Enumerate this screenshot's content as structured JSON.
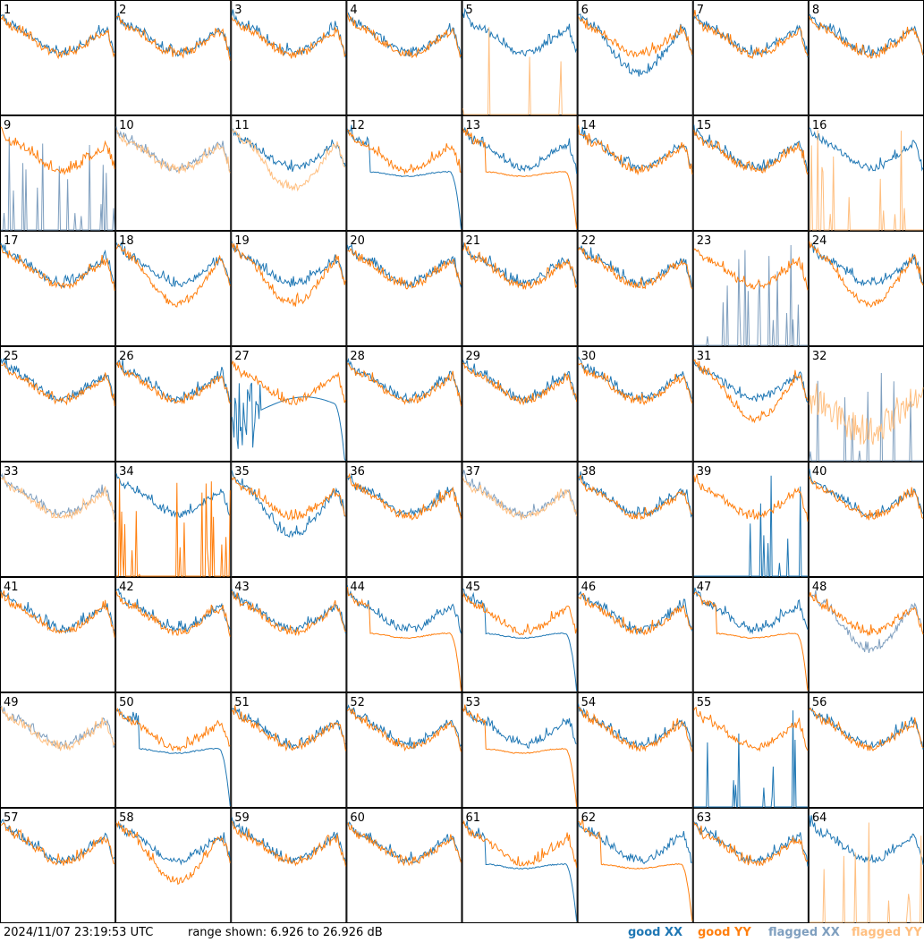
{
  "footer": {
    "timestamp": "2024/11/07 23:19:53 UTC",
    "range_prefix": "range shown:",
    "range_text": "6.926 to 26.926 dB",
    "legend": {
      "good_xx": "good XX",
      "good_yy": "good YY",
      "flagged_xx": "flagged XX",
      "flagged_yy": "flagged YY"
    }
  },
  "colors": {
    "good_xx": "#1f77b4",
    "good_yy": "#ff7f0e",
    "flagged_xx": "#7f9fbf",
    "flagged_yy": "#ffbf80",
    "panel_border": "#000000"
  },
  "chart_data": {
    "type": "line",
    "grid": {
      "rows": 8,
      "cols": 8
    },
    "ylim": [
      6.926,
      26.926
    ],
    "yunit": "dB",
    "series_names": [
      "good XX",
      "good YY",
      "flagged XX",
      "flagged YY"
    ],
    "panels": [
      {
        "id": "1",
        "xx": "normal",
        "yy": "normal"
      },
      {
        "id": "2",
        "xx": "normal",
        "yy": "normal"
      },
      {
        "id": "3",
        "xx": "normal",
        "yy": "normal"
      },
      {
        "id": "4",
        "xx": "normal",
        "yy": "normal"
      },
      {
        "id": "5",
        "xx": "normal",
        "yy": "spiky_flagged"
      },
      {
        "id": "6",
        "xx": "low_dip",
        "yy": "normal"
      },
      {
        "id": "7",
        "xx": "normal",
        "yy": "normal"
      },
      {
        "id": "8",
        "xx": "normal",
        "yy": "normal"
      },
      {
        "id": "9",
        "xx": "spiky_flagged",
        "yy": "normal"
      },
      {
        "id": "10",
        "xx": "normal_flagged",
        "yy": "normal_flagged"
      },
      {
        "id": "11",
        "xx": "normal",
        "yy": "low_flagged"
      },
      {
        "id": "12",
        "xx": "rolloff",
        "yy": "normal"
      },
      {
        "id": "13",
        "xx": "normal",
        "yy": "rolloff"
      },
      {
        "id": "14",
        "xx": "normal",
        "yy": "normal"
      },
      {
        "id": "15",
        "xx": "normal",
        "yy": "normal"
      },
      {
        "id": "16",
        "xx": "normal",
        "yy": "spiky_flagged"
      },
      {
        "id": "17",
        "xx": "normal",
        "yy": "normal"
      },
      {
        "id": "18",
        "xx": "normal",
        "yy": "low_dip"
      },
      {
        "id": "19",
        "xx": "normal",
        "yy": "low_dip"
      },
      {
        "id": "20",
        "xx": "normal",
        "yy": "normal"
      },
      {
        "id": "21",
        "xx": "normal",
        "yy": "normal"
      },
      {
        "id": "22",
        "xx": "normal",
        "yy": "normal"
      },
      {
        "id": "23",
        "xx": "spiky_flagged",
        "yy": "normal"
      },
      {
        "id": "24",
        "xx": "normal",
        "yy": "low_dip"
      },
      {
        "id": "25",
        "xx": "normal",
        "yy": "normal"
      },
      {
        "id": "26",
        "xx": "normal",
        "yy": "normal"
      },
      {
        "id": "27",
        "xx": "noisy_rolloff",
        "yy": "normal"
      },
      {
        "id": "28",
        "xx": "normal",
        "yy": "normal"
      },
      {
        "id": "29",
        "xx": "normal",
        "yy": "normal"
      },
      {
        "id": "30",
        "xx": "normal",
        "yy": "normal"
      },
      {
        "id": "31",
        "xx": "normal",
        "yy": "low_dip"
      },
      {
        "id": "32",
        "xx": "spiky_flagged",
        "yy": "noisy_flagged"
      },
      {
        "id": "33",
        "xx": "normal_flagged",
        "yy": "normal_flagged"
      },
      {
        "id": "34",
        "xx": "normal",
        "yy": "spiky"
      },
      {
        "id": "35",
        "xx": "low_dip",
        "yy": "normal"
      },
      {
        "id": "36",
        "xx": "normal",
        "yy": "normal"
      },
      {
        "id": "37",
        "xx": "normal_flagged",
        "yy": "normal_flagged"
      },
      {
        "id": "38",
        "xx": "normal",
        "yy": "normal"
      },
      {
        "id": "39",
        "xx": "spiky",
        "yy": "normal"
      },
      {
        "id": "40",
        "xx": "normal",
        "yy": "normal"
      },
      {
        "id": "41",
        "xx": "normal",
        "yy": "normal"
      },
      {
        "id": "42",
        "xx": "normal",
        "yy": "normal"
      },
      {
        "id": "43",
        "xx": "normal",
        "yy": "normal"
      },
      {
        "id": "44",
        "xx": "normal",
        "yy": "rolloff"
      },
      {
        "id": "45",
        "xx": "rolloff",
        "yy": "normal"
      },
      {
        "id": "46",
        "xx": "normal",
        "yy": "normal"
      },
      {
        "id": "47",
        "xx": "normal",
        "yy": "rolloff"
      },
      {
        "id": "48",
        "xx": "low_flagged",
        "yy": "normal"
      },
      {
        "id": "49",
        "xx": "normal_flagged",
        "yy": "normal_flagged"
      },
      {
        "id": "50",
        "xx": "rolloff",
        "yy": "normal"
      },
      {
        "id": "51",
        "xx": "normal",
        "yy": "normal"
      },
      {
        "id": "52",
        "xx": "normal",
        "yy": "normal"
      },
      {
        "id": "53",
        "xx": "normal",
        "yy": "rolloff"
      },
      {
        "id": "54",
        "xx": "normal",
        "yy": "normal"
      },
      {
        "id": "55",
        "xx": "spiky",
        "yy": "normal"
      },
      {
        "id": "56",
        "xx": "normal",
        "yy": "normal"
      },
      {
        "id": "57",
        "xx": "normal",
        "yy": "normal"
      },
      {
        "id": "58",
        "xx": "normal",
        "yy": "low_dip"
      },
      {
        "id": "59",
        "xx": "normal",
        "yy": "normal"
      },
      {
        "id": "60",
        "xx": "normal",
        "yy": "normal"
      },
      {
        "id": "61",
        "xx": "rolloff",
        "yy": "normal"
      },
      {
        "id": "62",
        "xx": "normal",
        "yy": "rolloff"
      },
      {
        "id": "63",
        "xx": "normal",
        "yy": "normal"
      },
      {
        "id": "64",
        "xx": "normal",
        "yy": "spiky_flagged"
      }
    ]
  }
}
